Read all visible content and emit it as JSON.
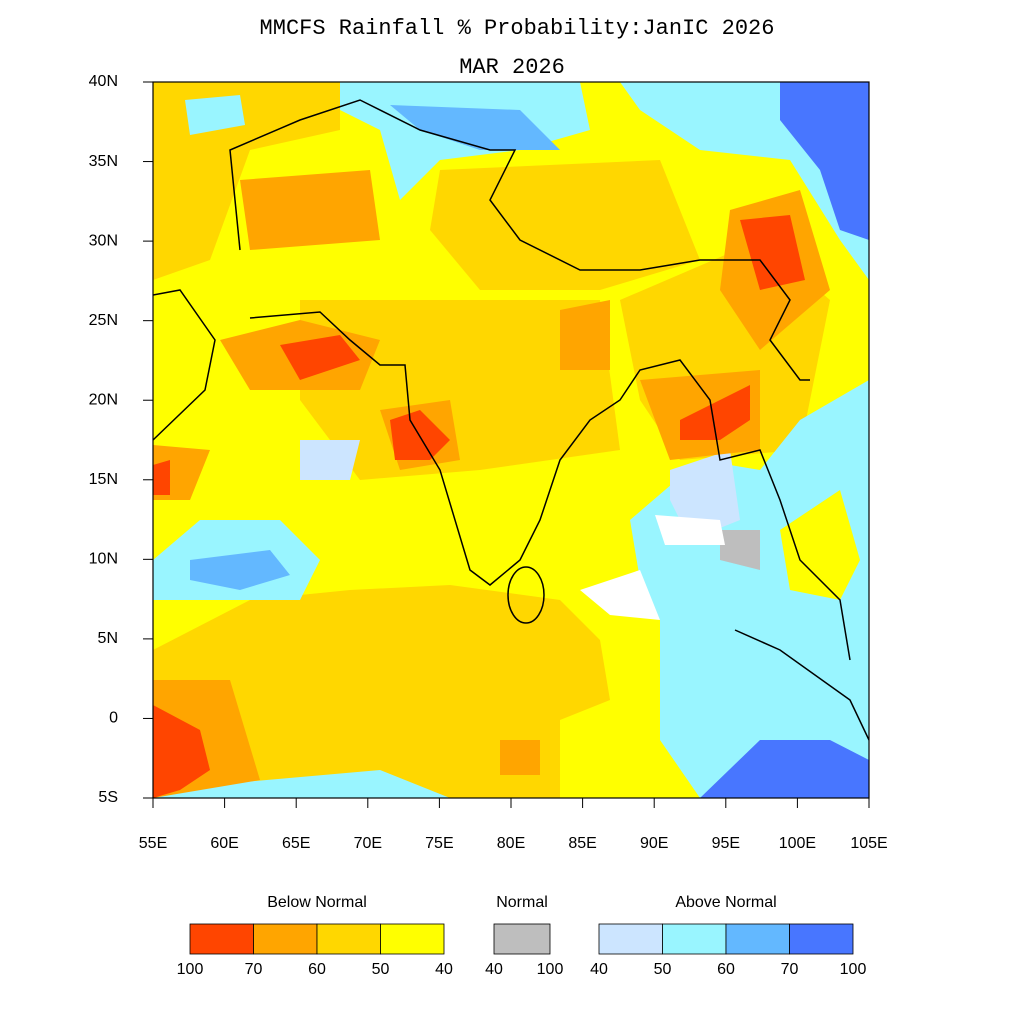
{
  "title": "MMCFS Rainfall % Probability:JanIC 2026",
  "subtitle": "MAR 2026",
  "map": {
    "xlim": [
      55,
      105
    ],
    "ylim": [
      -5,
      40
    ],
    "xticks": [
      {
        "value": 55,
        "label": "55E"
      },
      {
        "value": 60,
        "label": "60E"
      },
      {
        "value": 65,
        "label": "65E"
      },
      {
        "value": 70,
        "label": "70E"
      },
      {
        "value": 75,
        "label": "75E"
      },
      {
        "value": 80,
        "label": "80E"
      },
      {
        "value": 85,
        "label": "85E"
      },
      {
        "value": 90,
        "label": "90E"
      },
      {
        "value": 95,
        "label": "95E"
      },
      {
        "value": 100,
        "label": "100E"
      },
      {
        "value": 105,
        "label": "105E"
      }
    ],
    "yticks": [
      {
        "value": 40,
        "label": "40N"
      },
      {
        "value": 35,
        "label": "35N"
      },
      {
        "value": 30,
        "label": "30N"
      },
      {
        "value": 25,
        "label": "25N"
      },
      {
        "value": 20,
        "label": "20N"
      },
      {
        "value": 15,
        "label": "15N"
      },
      {
        "value": 10,
        "label": "10N"
      },
      {
        "value": 5,
        "label": "5N"
      },
      0,
      {
        "value": -5,
        "label": "5S"
      }
    ]
  },
  "legend": [
    {
      "title": "Below Normal",
      "colors": [
        "#ff4500",
        "#ffa500",
        "#ffd700",
        "#ffff00"
      ],
      "bounds": [
        100,
        70,
        60,
        50,
        40
      ]
    },
    {
      "title": "Normal",
      "colors": [
        "#bebebe"
      ],
      "bounds": [
        40,
        100
      ]
    },
    {
      "title": "Above Normal",
      "colors": [
        "#cce5ff",
        "#99f5ff",
        "#63b8ff",
        "#4876ff"
      ],
      "bounds": [
        40,
        50,
        60,
        70,
        100
      ]
    }
  ]
}
